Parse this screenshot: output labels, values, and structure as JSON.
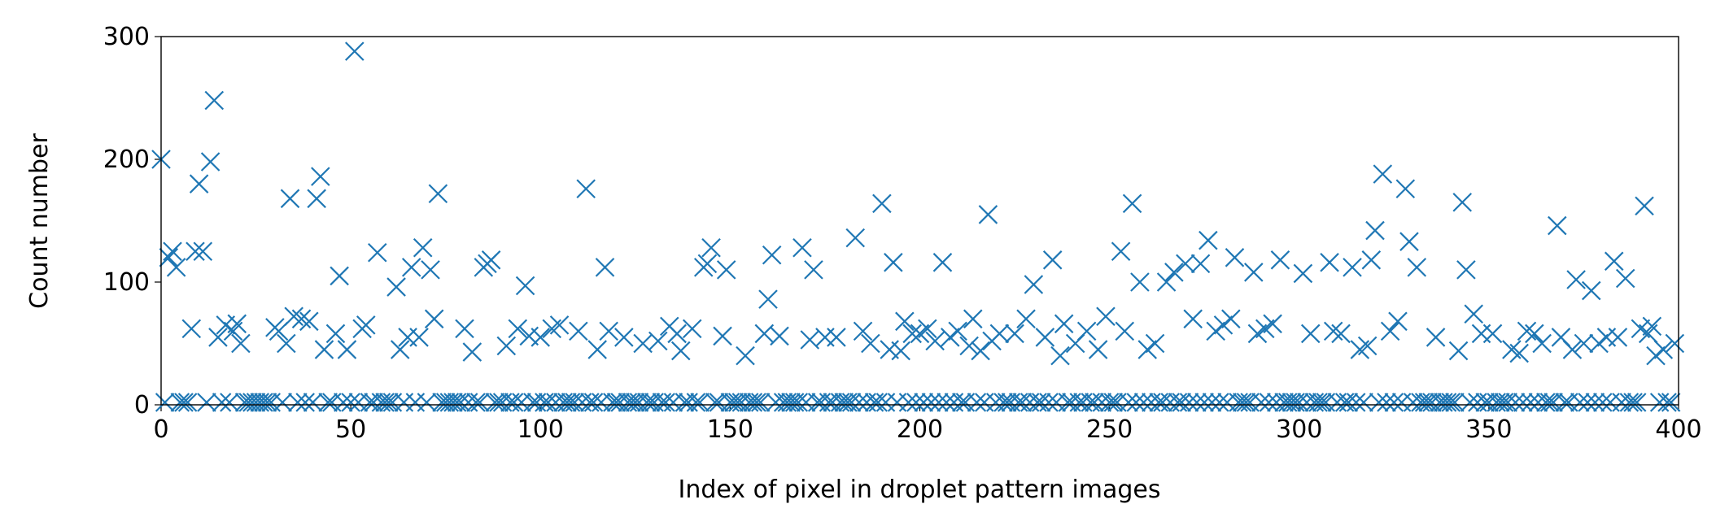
{
  "chart_data": {
    "type": "scatter",
    "xlabel": "Index of pixel in droplet pattern images",
    "ylabel": "Count number",
    "color": "#1f77b4",
    "marker": "x",
    "xlim": [
      0,
      400
    ],
    "xticks": [
      0,
      50,
      100,
      150,
      200,
      250,
      300,
      350,
      400
    ],
    "ylim": [
      0,
      300
    ],
    "yticks": [
      0,
      100,
      200,
      300
    ],
    "x": [
      0,
      1,
      2,
      3,
      4,
      5,
      6,
      7,
      8,
      9,
      10,
      11,
      12,
      13,
      14,
      15,
      16,
      17,
      18,
      19,
      20,
      21,
      22,
      23,
      24,
      25,
      26,
      27,
      28,
      29,
      30,
      31,
      32,
      33,
      34,
      35,
      36,
      37,
      38,
      39,
      40,
      41,
      42,
      43,
      44,
      45,
      46,
      47,
      48,
      49,
      50,
      51,
      52,
      53,
      54,
      55,
      56,
      57,
      58,
      59,
      60,
      61,
      62,
      63,
      64,
      65,
      66,
      67,
      68,
      69,
      70,
      71,
      72,
      73,
      74,
      75,
      76,
      77,
      78,
      79,
      80,
      81,
      82,
      83,
      84,
      85,
      86,
      87,
      88,
      89,
      90,
      91,
      92,
      93,
      94,
      95,
      96,
      97,
      98,
      99,
      100,
      101,
      102,
      103,
      104,
      105,
      106,
      107,
      108,
      109,
      110,
      111,
      112,
      113,
      114,
      115,
      116,
      117,
      118,
      119,
      120,
      121,
      122,
      123,
      124,
      125,
      126,
      127,
      128,
      129,
      130,
      131,
      132,
      133,
      134,
      135,
      136,
      137,
      138,
      139,
      140,
      141,
      142,
      143,
      144,
      145,
      146,
      147,
      148,
      149,
      150,
      151,
      152,
      153,
      154,
      155,
      156,
      157,
      158,
      159,
      160,
      161,
      162,
      163,
      164,
      165,
      166,
      167,
      168,
      169,
      170,
      171,
      172,
      173,
      174,
      175,
      176,
      177,
      178,
      179,
      180,
      181,
      182,
      183,
      184,
      185,
      186,
      187,
      188,
      189,
      190,
      191,
      192,
      193,
      194,
      195,
      196,
      197,
      198,
      199,
      200,
      201,
      202,
      203,
      204,
      205,
      206,
      207,
      208,
      209,
      210,
      211,
      212,
      213,
      214,
      215,
      216,
      217,
      218,
      219,
      220,
      221,
      222,
      223,
      224,
      225,
      226,
      227,
      228,
      229,
      230,
      231,
      232,
      233,
      234,
      235,
      236,
      237,
      238,
      239,
      240,
      241,
      242,
      243,
      244,
      245,
      246,
      247,
      248,
      249,
      250,
      251,
      252,
      253,
      254,
      255,
      256,
      257,
      258,
      259,
      260,
      261,
      262,
      263,
      264,
      265,
      266,
      267,
      268,
      269,
      270,
      271,
      272,
      273,
      274,
      275,
      276,
      277,
      278,
      279,
      280,
      281,
      282,
      283,
      284,
      285,
      286,
      287,
      288,
      289,
      290,
      291,
      292,
      293,
      294,
      295,
      296,
      297,
      298,
      299,
      300,
      301,
      302,
      303,
      304,
      305,
      306,
      307,
      308,
      309,
      310,
      311,
      312,
      313,
      314,
      315,
      316,
      317,
      318,
      319,
      320,
      321,
      322,
      323,
      324,
      325,
      326,
      327,
      328,
      329,
      330,
      331,
      332,
      333,
      334,
      335,
      336,
      337,
      338,
      339,
      340,
      341,
      342,
      343,
      344,
      345,
      346,
      347,
      348,
      349,
      350,
      351,
      352,
      353,
      354,
      355,
      356,
      357,
      358,
      359,
      360,
      361,
      362,
      363,
      364,
      365,
      366,
      367,
      368,
      369,
      370,
      371,
      372,
      373,
      374,
      375,
      376,
      377,
      378,
      379,
      380,
      381,
      382,
      383,
      384,
      385,
      386,
      387,
      388,
      389,
      390,
      391,
      392,
      393,
      394,
      395,
      396,
      397,
      398,
      399
    ],
    "values": [
      200,
      2,
      120,
      125,
      112,
      2,
      2,
      2,
      62,
      125,
      180,
      125,
      2,
      198,
      248,
      55,
      2,
      65,
      2,
      60,
      66,
      50,
      2,
      2,
      2,
      2,
      2,
      2,
      2,
      2,
      63,
      60,
      2,
      50,
      168,
      72,
      2,
      70,
      2,
      68,
      2,
      168,
      186,
      45,
      2,
      2,
      58,
      105,
      2,
      45,
      2,
      288,
      2,
      62,
      65,
      2,
      2,
      124,
      2,
      2,
      2,
      2,
      96,
      45,
      2,
      55,
      112,
      2,
      55,
      128,
      2,
      110,
      70,
      172,
      2,
      2,
      2,
      2,
      2,
      2,
      62,
      2,
      43,
      2,
      2,
      112,
      115,
      118,
      2,
      2,
      2,
      48,
      2,
      2,
      62,
      2,
      97,
      56,
      2,
      2,
      55,
      2,
      2,
      62,
      2,
      65,
      2,
      2,
      2,
      2,
      60,
      2,
      176,
      2,
      2,
      45,
      2,
      112,
      60,
      2,
      2,
      2,
      55,
      2,
      2,
      2,
      2,
      50,
      2,
      2,
      2,
      52,
      2,
      2,
      64,
      2,
      58,
      44,
      2,
      2,
      62,
      2,
      2,
      112,
      115,
      128,
      2,
      2,
      56,
      110,
      2,
      2,
      2,
      2,
      40,
      2,
      2,
      2,
      2,
      58,
      86,
      122,
      2,
      56,
      2,
      2,
      2,
      2,
      2,
      128,
      2,
      53,
      110,
      2,
      2,
      55,
      2,
      2,
      55,
      2,
      2,
      2,
      2,
      136,
      2,
      60,
      2,
      50,
      2,
      2,
      164,
      2,
      45,
      116,
      2,
      44,
      68,
      2,
      58,
      2,
      58,
      2,
      62,
      2,
      52,
      2,
      116,
      2,
      55,
      2,
      60,
      2,
      2,
      48,
      70,
      2,
      44,
      2,
      155,
      52,
      2,
      58,
      2,
      2,
      2,
      58,
      2,
      2,
      70,
      2,
      98,
      2,
      2,
      55,
      2,
      118,
      2,
      40,
      66,
      2,
      2,
      50,
      2,
      2,
      60,
      2,
      2,
      45,
      2,
      72,
      2,
      2,
      2,
      125,
      60,
      2,
      164,
      2,
      100,
      2,
      45,
      2,
      50,
      2,
      2,
      100,
      2,
      108,
      2,
      2,
      115,
      2,
      70,
      2,
      115,
      2,
      134,
      2,
      60,
      2,
      65,
      2,
      70,
      120,
      2,
      2,
      2,
      2,
      108,
      58,
      2,
      62,
      2,
      66,
      2,
      118,
      2,
      2,
      2,
      2,
      2,
      107,
      2,
      58,
      2,
      2,
      2,
      2,
      116,
      60,
      2,
      58,
      2,
      2,
      112,
      2,
      45,
      2,
      48,
      118,
      142,
      2,
      188,
      2,
      60,
      2,
      68,
      2,
      176,
      133,
      2,
      112,
      2,
      2,
      2,
      2,
      55,
      2,
      2,
      2,
      2,
      2,
      44,
      165,
      110,
      2,
      74,
      2,
      58,
      2,
      2,
      58,
      2,
      2,
      2,
      2,
      45,
      2,
      42,
      2,
      60,
      2,
      58,
      2,
      50,
      2,
      2,
      2,
      146,
      55,
      2,
      2,
      45,
      102,
      2,
      50,
      2,
      93,
      2,
      50,
      2,
      55,
      2,
      117,
      55,
      2,
      103,
      2,
      2,
      2,
      62,
      162,
      58,
      64,
      40,
      2,
      45,
      2,
      2,
      50
    ]
  }
}
